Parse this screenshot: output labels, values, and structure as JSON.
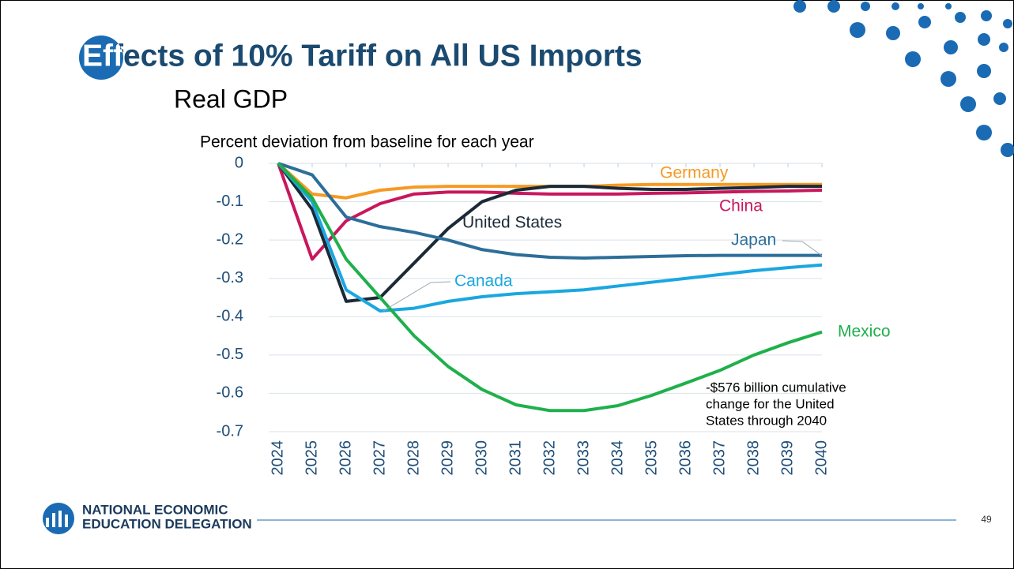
{
  "header": {
    "title": "Effects of 10% Tariff on All US Imports",
    "subtitle": "Real GDP"
  },
  "chart_data": {
    "type": "line",
    "y_label": "Percent deviation from baseline for each year",
    "categories": [
      "2024",
      "2025",
      "2026",
      "2027",
      "2028",
      "2029",
      "2030",
      "2031",
      "2032",
      "2033",
      "2034",
      "2035",
      "2036",
      "2037",
      "2038",
      "2039",
      "2040"
    ],
    "series": [
      {
        "name": "Germany",
        "color": "#f59a23",
        "values": [
          0,
          -0.08,
          -0.09,
          -0.07,
          -0.062,
          -0.06,
          -0.06,
          -0.06,
          -0.06,
          -0.06,
          -0.057,
          -0.055,
          -0.055,
          -0.055,
          -0.055,
          -0.055,
          -0.055
        ]
      },
      {
        "name": "China",
        "color": "#c8175d",
        "values": [
          0,
          -0.25,
          -0.15,
          -0.105,
          -0.08,
          -0.075,
          -0.075,
          -0.078,
          -0.08,
          -0.08,
          -0.08,
          -0.078,
          -0.077,
          -0.075,
          -0.073,
          -0.072,
          -0.07
        ]
      },
      {
        "name": "United States",
        "color": "#1b2a38",
        "values": [
          0,
          -0.12,
          -0.36,
          -0.35,
          -0.26,
          -0.17,
          -0.1,
          -0.07,
          -0.06,
          -0.06,
          -0.065,
          -0.068,
          -0.068,
          -0.065,
          -0.063,
          -0.06,
          -0.06
        ]
      },
      {
        "name": "Japan",
        "color": "#2d6e99",
        "values": [
          0,
          -0.03,
          -0.14,
          -0.165,
          -0.18,
          -0.2,
          -0.225,
          -0.238,
          -0.245,
          -0.247,
          -0.245,
          -0.243,
          -0.241,
          -0.24,
          -0.24,
          -0.24,
          -0.24
        ]
      },
      {
        "name": "Canada",
        "color": "#1aa7e0",
        "values": [
          0,
          -0.1,
          -0.33,
          -0.385,
          -0.378,
          -0.36,
          -0.348,
          -0.34,
          -0.335,
          -0.33,
          -0.32,
          -0.31,
          -0.3,
          -0.29,
          -0.28,
          -0.272,
          -0.265
        ]
      },
      {
        "name": "Mexico",
        "color": "#1fb04b",
        "values": [
          0,
          -0.09,
          -0.25,
          -0.35,
          -0.45,
          -0.53,
          -0.59,
          -0.63,
          -0.645,
          -0.645,
          -0.632,
          -0.605,
          -0.573,
          -0.54,
          -0.5,
          -0.468,
          -0.44
        ]
      }
    ],
    "ylim": [
      -0.7,
      0
    ],
    "yticks": [
      0,
      -0.1,
      -0.2,
      -0.3,
      -0.4,
      -0.5,
      -0.6,
      -0.7
    ],
    "grid": true,
    "annotation": [
      "-$576 billion cumulative",
      "change for the United",
      "States through 2040"
    ]
  },
  "footer": {
    "logo_line1": "NATIONAL ECONOMIC",
    "logo_line2": "EDUCATION DELEGATION",
    "page_number": "49"
  }
}
